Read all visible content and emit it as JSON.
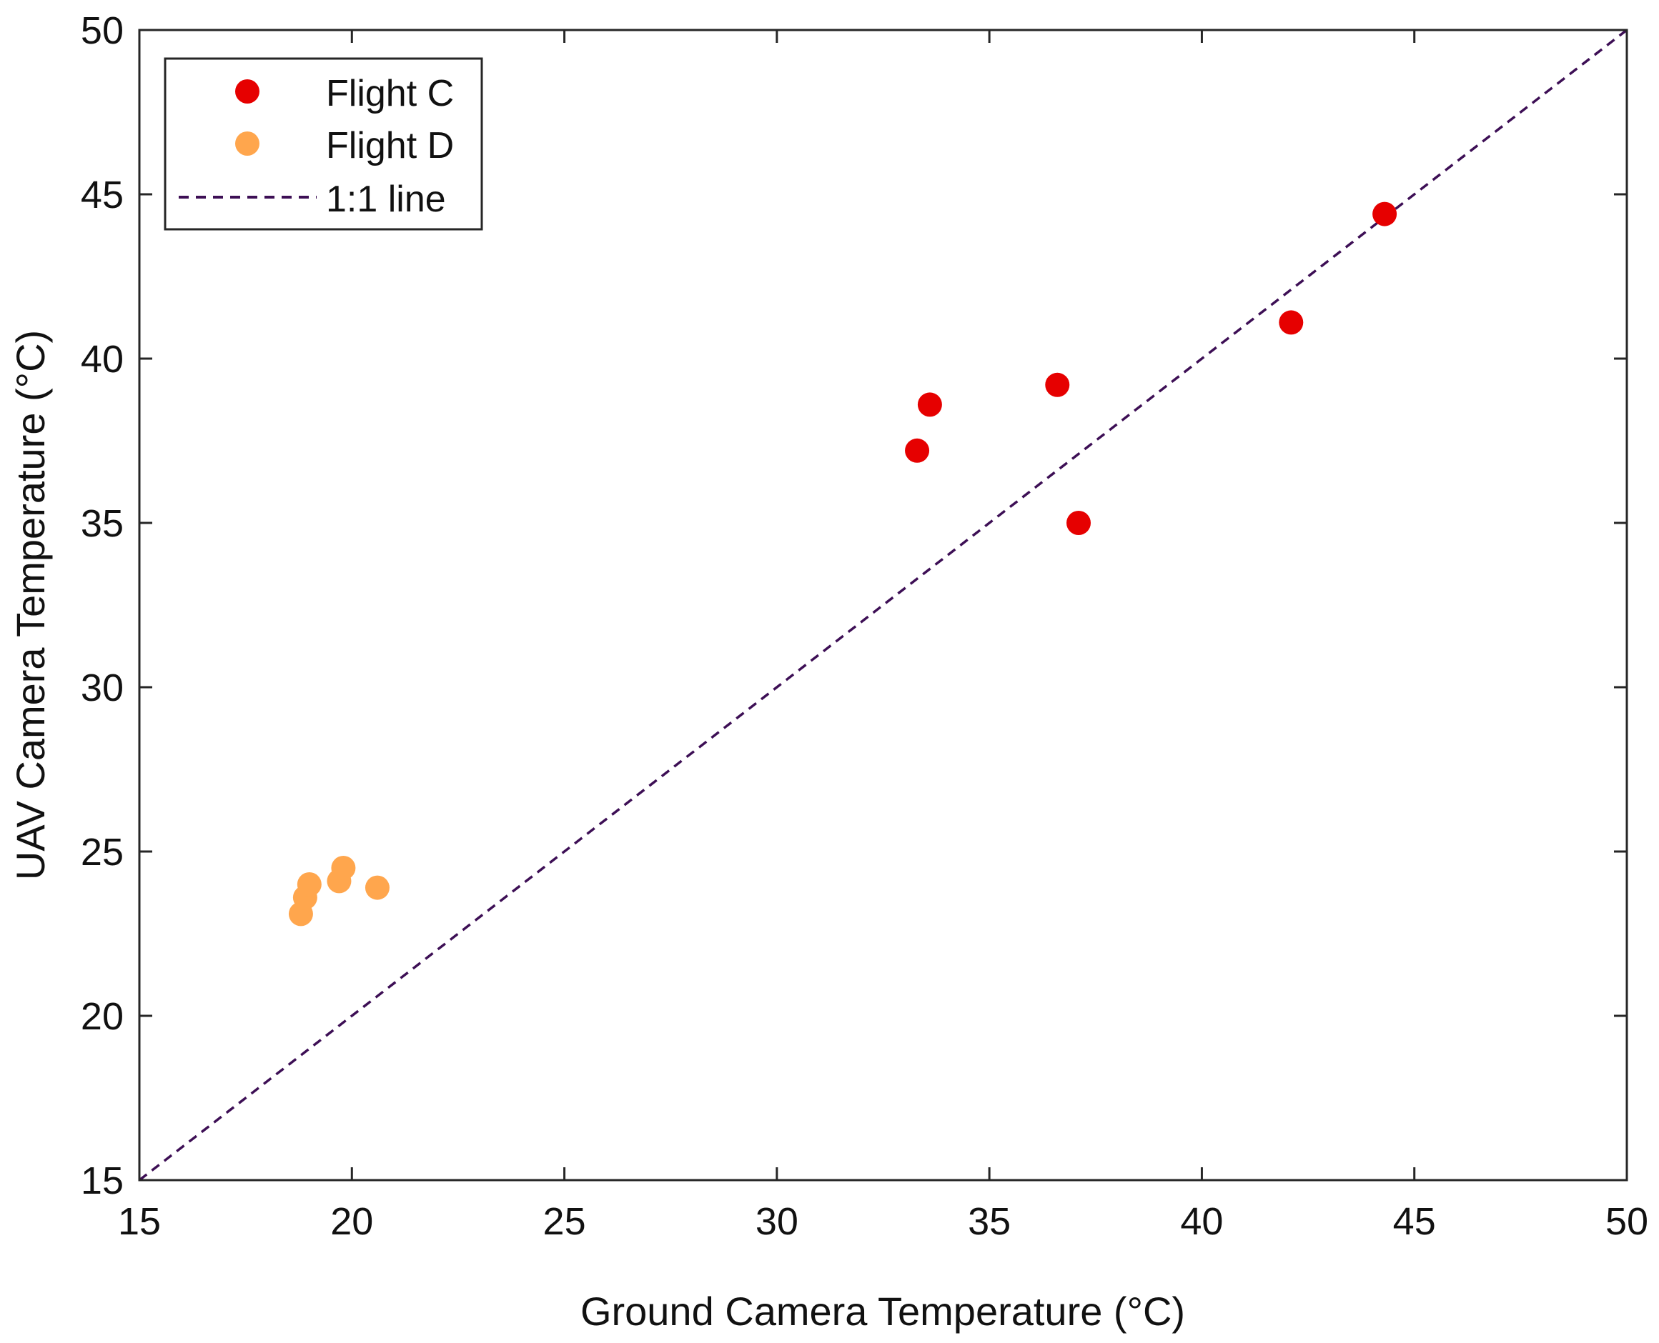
{
  "chart_data": {
    "type": "scatter",
    "title": "",
    "xlabel": "Ground Camera Temperature (°C)",
    "ylabel": "UAV Camera Temperature (°C)",
    "xlim": [
      15,
      50
    ],
    "ylim": [
      15,
      50
    ],
    "xticks": [
      15,
      20,
      25,
      30,
      35,
      40,
      45,
      50
    ],
    "yticks": [
      15,
      20,
      25,
      30,
      35,
      40,
      45,
      50
    ],
    "xtick_labels": [
      "15",
      "20",
      "25",
      "30",
      "35",
      "40",
      "45",
      "50"
    ],
    "ytick_labels": [
      "15",
      "20",
      "25",
      "30",
      "35",
      "40",
      "45",
      "50"
    ],
    "grid": false,
    "legend_position": "top-left",
    "series": [
      {
        "name": "Flight C",
        "color": "#e60000",
        "points": [
          {
            "x": 33.3,
            "y": 37.2
          },
          {
            "x": 33.6,
            "y": 38.6
          },
          {
            "x": 36.6,
            "y": 39.2
          },
          {
            "x": 37.1,
            "y": 35.0
          },
          {
            "x": 42.1,
            "y": 41.1
          },
          {
            "x": 44.3,
            "y": 44.4
          }
        ]
      },
      {
        "name": "Flight D",
        "color": "#ffa64d",
        "points": [
          {
            "x": 18.8,
            "y": 23.1
          },
          {
            "x": 18.9,
            "y": 23.6
          },
          {
            "x": 19.0,
            "y": 24.0
          },
          {
            "x": 19.7,
            "y": 24.1
          },
          {
            "x": 19.8,
            "y": 24.5
          },
          {
            "x": 20.6,
            "y": 23.9
          }
        ]
      }
    ],
    "reference_line": {
      "name": "1:1 line",
      "color": "#3d0f55",
      "style": "dashed",
      "from": [
        15,
        15
      ],
      "to": [
        50,
        50
      ]
    }
  }
}
